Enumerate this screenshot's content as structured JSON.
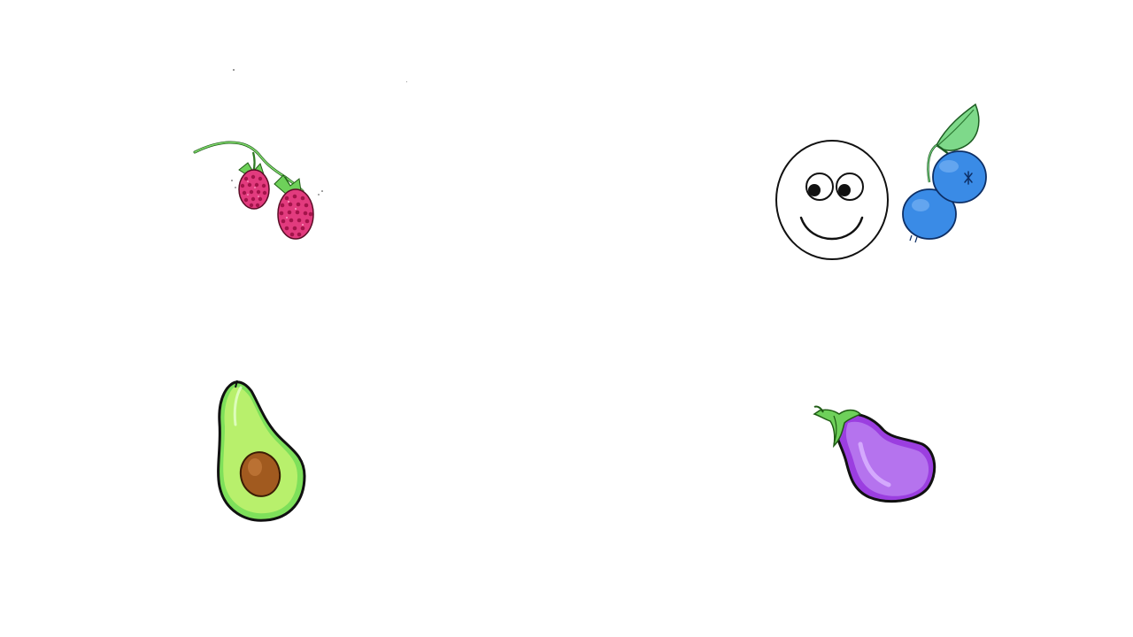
{
  "scene": {
    "background_color": "#ffffff",
    "items": [
      {
        "id": "raspberry",
        "icon": "raspberry-icon",
        "color": "#d8286a"
      },
      {
        "id": "smiley",
        "icon": "smiley-face-icon",
        "color": "#000000"
      },
      {
        "id": "blueberry",
        "icon": "blueberry-icon",
        "color": "#3a8be6"
      },
      {
        "id": "avocado",
        "icon": "avocado-icon",
        "color": "#7ed957"
      },
      {
        "id": "eggplant",
        "icon": "eggplant-icon",
        "color": "#9b3ee0"
      }
    ]
  }
}
